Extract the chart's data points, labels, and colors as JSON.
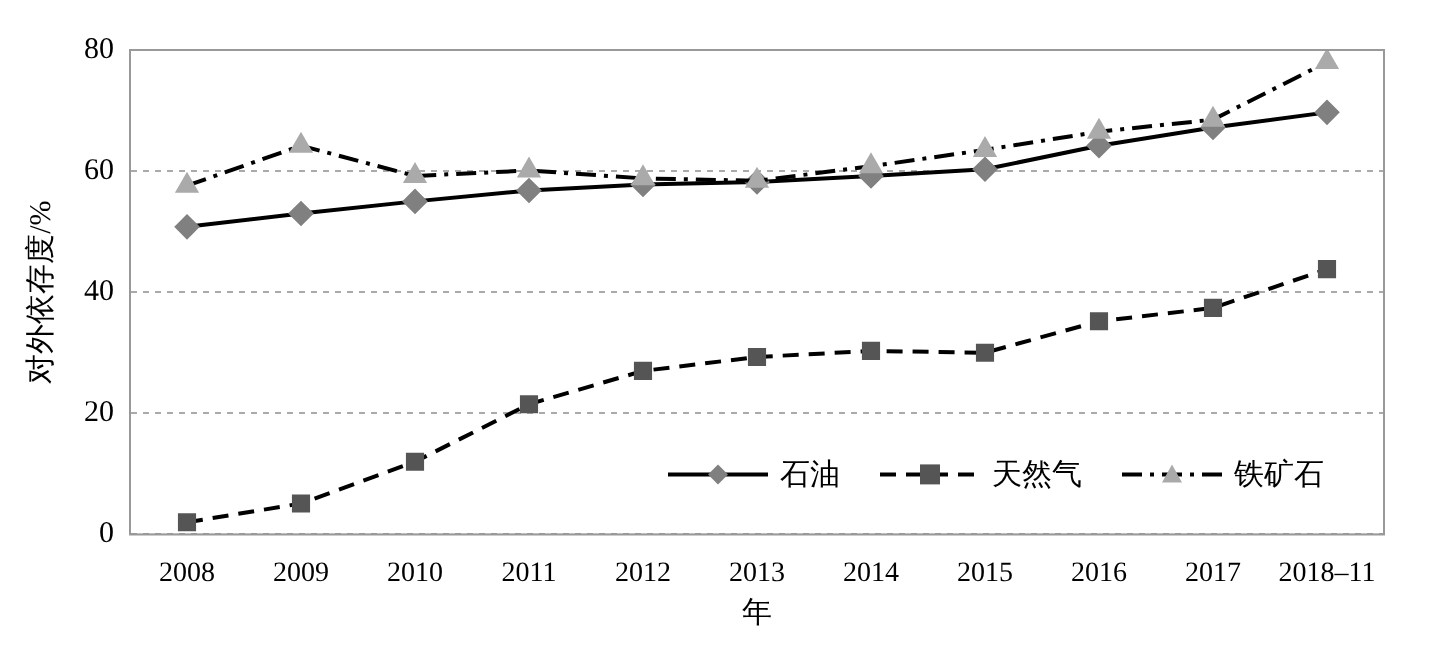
{
  "chart_data": {
    "type": "line",
    "xlabel": "年",
    "ylabel": "对外依存度/%",
    "categories": [
      "2008",
      "2009",
      "2010",
      "2011",
      "2012",
      "2013",
      "2014",
      "2015",
      "2016",
      "2017",
      "2018–11"
    ],
    "series": [
      {
        "name": "石油",
        "color": "#000000",
        "marker": "diamond",
        "line_style": "solid",
        "values": [
          50.8,
          53,
          55,
          56.8,
          57.8,
          58.2,
          59.2,
          60.3,
          64.2,
          67.2,
          69.7
        ]
      },
      {
        "name": "天然气",
        "color": "#000000",
        "marker": "square",
        "line_style": "dashed",
        "values": [
          2,
          5.1,
          12,
          21.5,
          27,
          29.3,
          30.3,
          30,
          35.2,
          37.4,
          43.8
        ]
      },
      {
        "name": "铁矿石",
        "color": "#000000",
        "marker": "triangle",
        "line_style": "dashdot",
        "values": [
          57.6,
          64.2,
          59.2,
          60.1,
          58.8,
          58.4,
          60.8,
          63.5,
          66.5,
          68.5,
          78
        ]
      }
    ],
    "ylim": [
      0,
      80
    ],
    "yticks": [
      0,
      20,
      40,
      60,
      80
    ],
    "grid": "y",
    "legend": "bottom right"
  }
}
